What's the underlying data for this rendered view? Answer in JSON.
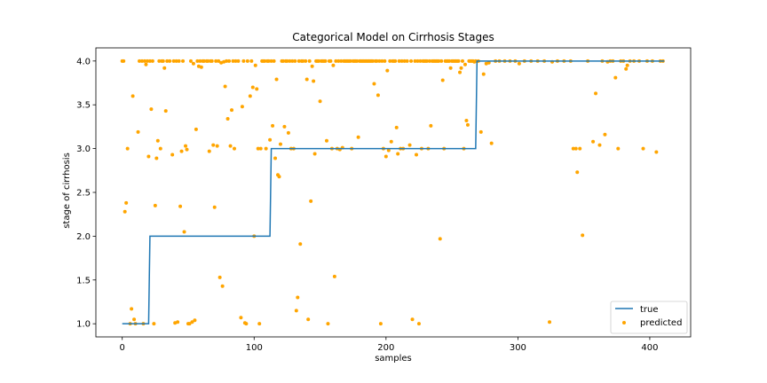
{
  "chart_data": {
    "type": "scatter",
    "title": "Categorical Model on Cirrhosis Stages",
    "xlabel": "samples",
    "ylabel": "stage of cirrhosis",
    "xlim": [
      -20,
      431
    ],
    "ylim": [
      0.85,
      4.15
    ],
    "xticks": [
      0,
      100,
      200,
      300,
      400
    ],
    "yticks": [
      1.0,
      1.5,
      2.0,
      2.5,
      3.0,
      3.5,
      4.0
    ],
    "xtick_labels": [
      "0",
      "100",
      "200",
      "300",
      "400"
    ],
    "ytick_labels": [
      "1.0",
      "1.5",
      "2.0",
      "2.5",
      "3.0",
      "3.5",
      "4.0"
    ],
    "legend": {
      "position": "lower-right",
      "entries": [
        "true",
        "predicted"
      ]
    },
    "series": [
      {
        "name": "true",
        "kind": "step-line",
        "color": "#1f77b4",
        "segments": [
          {
            "x_start": 0,
            "x_end": 20,
            "value": 1.0
          },
          {
            "x_start": 21,
            "x_end": 112,
            "value": 2.0
          },
          {
            "x_start": 113,
            "x_end": 268,
            "value": 3.0
          },
          {
            "x_start": 269,
            "x_end": 411,
            "value": 4.0
          }
        ]
      },
      {
        "name": "predicted",
        "kind": "scatter",
        "color": "#ffa500",
        "points": [
          [
            0,
            4.0
          ],
          [
            1,
            4.0
          ],
          [
            2,
            2.28
          ],
          [
            3,
            2.38
          ],
          [
            4,
            3.0
          ],
          [
            6,
            1.0
          ],
          [
            7,
            1.17
          ],
          [
            8,
            3.6
          ],
          [
            9,
            1.05
          ],
          [
            10,
            1.0
          ],
          [
            12,
            3.19
          ],
          [
            13,
            4.0
          ],
          [
            15,
            4.0
          ],
          [
            16,
            1.0
          ],
          [
            17,
            4.0
          ],
          [
            18,
            3.96
          ],
          [
            19,
            4.0
          ],
          [
            20,
            2.91
          ],
          [
            21,
            4.0
          ],
          [
            22,
            3.45
          ],
          [
            23,
            4.0
          ],
          [
            24,
            1.0
          ],
          [
            25,
            2.35
          ],
          [
            26,
            2.89
          ],
          [
            27,
            3.09
          ],
          [
            28,
            4.0
          ],
          [
            29,
            3.0
          ],
          [
            30,
            4.0
          ],
          [
            31,
            4.0
          ],
          [
            32,
            3.92
          ],
          [
            33,
            3.43
          ],
          [
            34,
            4.0
          ],
          [
            36,
            4.0
          ],
          [
            38,
            2.93
          ],
          [
            39,
            4.0
          ],
          [
            40,
            1.01
          ],
          [
            41,
            4.0
          ],
          [
            42,
            1.02
          ],
          [
            43,
            4.0
          ],
          [
            44,
            2.34
          ],
          [
            45,
            2.97
          ],
          [
            46,
            4.0
          ],
          [
            47,
            2.05
          ],
          [
            48,
            3.03
          ],
          [
            49,
            2.99
          ],
          [
            50,
            1.0
          ],
          [
            51,
            1.0
          ],
          [
            52,
            4.0
          ],
          [
            53,
            1.02
          ],
          [
            54,
            3.97
          ],
          [
            55,
            1.04
          ],
          [
            56,
            3.22
          ],
          [
            57,
            4.0
          ],
          [
            58,
            3.94
          ],
          [
            59,
            4.0
          ],
          [
            60,
            3.93
          ],
          [
            61,
            4.0
          ],
          [
            62,
            4.0
          ],
          [
            64,
            4.0
          ],
          [
            65,
            4.0
          ],
          [
            66,
            2.97
          ],
          [
            67,
            4.0
          ],
          [
            68,
            4.0
          ],
          [
            69,
            3.04
          ],
          [
            70,
            2.33
          ],
          [
            71,
            4.0
          ],
          [
            72,
            3.03
          ],
          [
            73,
            4.0
          ],
          [
            74,
            1.53
          ],
          [
            75,
            3.98
          ],
          [
            76,
            1.43
          ],
          [
            77,
            3.99
          ],
          [
            78,
            3.71
          ],
          [
            79,
            4.0
          ],
          [
            80,
            3.34
          ],
          [
            81,
            4.0
          ],
          [
            82,
            3.03
          ],
          [
            83,
            3.44
          ],
          [
            84,
            4.0
          ],
          [
            85,
            3.0
          ],
          [
            86,
            4.0
          ],
          [
            88,
            4.0
          ],
          [
            90,
            1.07
          ],
          [
            91,
            3.48
          ],
          [
            92,
            4.0
          ],
          [
            93,
            1.01
          ],
          [
            94,
            1.0
          ],
          [
            95,
            4.0
          ],
          [
            97,
            3.6
          ],
          [
            98,
            4.0
          ],
          [
            99,
            3.7
          ],
          [
            100,
            2.0
          ],
          [
            101,
            3.95
          ],
          [
            102,
            3.68
          ],
          [
            103,
            3.0
          ],
          [
            104,
            1.0
          ],
          [
            105,
            3.0
          ],
          [
            106,
            4.0
          ],
          [
            107,
            4.0
          ],
          [
            108,
            4.0
          ],
          [
            109,
            3.0
          ],
          [
            110,
            4.0
          ],
          [
            111,
            4.0
          ],
          [
            112,
            3.1
          ],
          [
            113,
            4.0
          ],
          [
            114,
            3.26
          ],
          [
            115,
            4.0
          ],
          [
            116,
            2.89
          ],
          [
            117,
            3.79
          ],
          [
            118,
            2.7
          ],
          [
            119,
            2.68
          ],
          [
            120,
            3.05
          ],
          [
            121,
            4.0
          ],
          [
            122,
            4.0
          ],
          [
            123,
            3.25
          ],
          [
            124,
            4.0
          ],
          [
            125,
            4.0
          ],
          [
            126,
            3.18
          ],
          [
            127,
            4.0
          ],
          [
            128,
            3.0
          ],
          [
            129,
            4.0
          ],
          [
            130,
            3.0
          ],
          [
            131,
            4.0
          ],
          [
            132,
            1.15
          ],
          [
            133,
            1.3
          ],
          [
            134,
            4.0
          ],
          [
            135,
            1.91
          ],
          [
            136,
            4.0
          ],
          [
            137,
            4.0
          ],
          [
            139,
            4.0
          ],
          [
            140,
            3.79
          ],
          [
            141,
            1.05
          ],
          [
            142,
            4.0
          ],
          [
            143,
            2.4
          ],
          [
            144,
            3.94
          ],
          [
            145,
            3.77
          ],
          [
            146,
            2.94
          ],
          [
            147,
            4.0
          ],
          [
            148,
            4.0
          ],
          [
            149,
            4.0
          ],
          [
            150,
            3.54
          ],
          [
            151,
            4.0
          ],
          [
            152,
            4.0
          ],
          [
            153,
            4.0
          ],
          [
            154,
            4.0
          ],
          [
            155,
            3.09
          ],
          [
            156,
            1.0
          ],
          [
            157,
            4.0
          ],
          [
            158,
            4.0
          ],
          [
            159,
            3.0
          ],
          [
            160,
            3.95
          ],
          [
            161,
            1.54
          ],
          [
            162,
            4.0
          ],
          [
            163,
            3.0
          ],
          [
            164,
            4.0
          ],
          [
            165,
            2.99
          ],
          [
            166,
            4.0
          ],
          [
            167,
            3.01
          ],
          [
            168,
            4.0
          ],
          [
            169,
            4.0
          ],
          [
            170,
            4.0
          ],
          [
            171,
            4.0
          ],
          [
            172,
            4.0
          ],
          [
            173,
            4.0
          ],
          [
            174,
            3.0
          ],
          [
            175,
            4.0
          ],
          [
            176,
            4.0
          ],
          [
            177,
            4.0
          ],
          [
            178,
            4.0
          ],
          [
            179,
            3.13
          ],
          [
            180,
            4.0
          ],
          [
            181,
            4.0
          ],
          [
            182,
            4.0
          ],
          [
            183,
            4.0
          ],
          [
            184,
            4.0
          ],
          [
            185,
            4.0
          ],
          [
            186,
            4.0
          ],
          [
            187,
            4.0
          ],
          [
            188,
            4.0
          ],
          [
            189,
            4.0
          ],
          [
            190,
            4.0
          ],
          [
            191,
            3.74
          ],
          [
            192,
            4.0
          ],
          [
            193,
            4.0
          ],
          [
            194,
            3.61
          ],
          [
            195,
            4.0
          ],
          [
            196,
            1.0
          ],
          [
            197,
            4.0
          ],
          [
            198,
            3.0
          ],
          [
            199,
            4.0
          ],
          [
            200,
            2.91
          ],
          [
            201,
            3.89
          ],
          [
            202,
            2.98
          ],
          [
            203,
            4.0
          ],
          [
            204,
            3.08
          ],
          [
            205,
            4.0
          ],
          [
            206,
            4.0
          ],
          [
            207,
            4.0
          ],
          [
            208,
            3.24
          ],
          [
            209,
            2.94
          ],
          [
            210,
            4.0
          ],
          [
            211,
            3.0
          ],
          [
            212,
            4.0
          ],
          [
            213,
            3.0
          ],
          [
            214,
            4.0
          ],
          [
            216,
            4.0
          ],
          [
            218,
            3.04
          ],
          [
            219,
            4.0
          ],
          [
            220,
            1.05
          ],
          [
            222,
            4.0
          ],
          [
            223,
            2.93
          ],
          [
            224,
            4.0
          ],
          [
            225,
            1.0
          ],
          [
            226,
            4.0
          ],
          [
            227,
            3.0
          ],
          [
            228,
            4.0
          ],
          [
            229,
            4.0
          ],
          [
            230,
            4.0
          ],
          [
            231,
            4.0
          ],
          [
            232,
            3.0
          ],
          [
            233,
            4.0
          ],
          [
            234,
            3.26
          ],
          [
            235,
            4.0
          ],
          [
            236,
            4.0
          ],
          [
            237,
            4.0
          ],
          [
            238,
            4.0
          ],
          [
            239,
            4.0
          ],
          [
            240,
            4.0
          ],
          [
            241,
            1.97
          ],
          [
            242,
            4.0
          ],
          [
            243,
            3.78
          ],
          [
            244,
            3.0
          ],
          [
            245,
            4.0
          ],
          [
            246,
            4.0
          ],
          [
            247,
            4.0
          ],
          [
            248,
            4.0
          ],
          [
            249,
            3.92
          ],
          [
            250,
            4.0
          ],
          [
            251,
            4.0
          ],
          [
            252,
            4.0
          ],
          [
            253,
            4.0
          ],
          [
            254,
            4.0
          ],
          [
            255,
            4.0
          ],
          [
            256,
            3.87
          ],
          [
            257,
            3.92
          ],
          [
            258,
            4.0
          ],
          [
            259,
            3.0
          ],
          [
            260,
            3.96
          ],
          [
            261,
            3.32
          ],
          [
            262,
            3.27
          ],
          [
            263,
            4.0
          ],
          [
            264,
            4.0
          ],
          [
            265,
            4.0
          ],
          [
            266,
            4.0
          ],
          [
            267,
            3.99
          ],
          [
            268,
            4.0
          ],
          [
            270,
            4.0
          ],
          [
            272,
            3.19
          ],
          [
            274,
            3.85
          ],
          [
            276,
            3.97
          ],
          [
            278,
            3.98
          ],
          [
            280,
            3.06
          ],
          [
            283,
            4.0
          ],
          [
            286,
            4.0
          ],
          [
            290,
            4.0
          ],
          [
            294,
            4.0
          ],
          [
            298,
            4.0
          ],
          [
            301,
            3.97
          ],
          [
            305,
            4.0
          ],
          [
            310,
            4.0
          ],
          [
            315,
            4.0
          ],
          [
            320,
            4.0
          ],
          [
            324,
            1.02
          ],
          [
            326,
            3.99
          ],
          [
            330,
            4.0
          ],
          [
            335,
            4.0
          ],
          [
            340,
            4.0
          ],
          [
            342,
            3.0
          ],
          [
            344,
            3.0
          ],
          [
            345,
            2.73
          ],
          [
            347,
            3.0
          ],
          [
            349,
            2.01
          ],
          [
            353,
            4.0
          ],
          [
            357,
            3.08
          ],
          [
            359,
            3.63
          ],
          [
            362,
            3.04
          ],
          [
            364,
            4.0
          ],
          [
            366,
            3.16
          ],
          [
            368,
            3.99
          ],
          [
            370,
            4.0
          ],
          [
            372,
            4.0
          ],
          [
            374,
            3.81
          ],
          [
            376,
            3.0
          ],
          [
            378,
            4.0
          ],
          [
            380,
            4.0
          ],
          [
            382,
            3.91
          ],
          [
            383,
            3.95
          ],
          [
            385,
            4.0
          ],
          [
            388,
            4.0
          ],
          [
            392,
            4.0
          ],
          [
            395,
            3.0
          ],
          [
            398,
            4.0
          ],
          [
            402,
            4.0
          ],
          [
            405,
            2.96
          ],
          [
            408,
            4.0
          ],
          [
            410,
            4.0
          ]
        ]
      }
    ]
  }
}
